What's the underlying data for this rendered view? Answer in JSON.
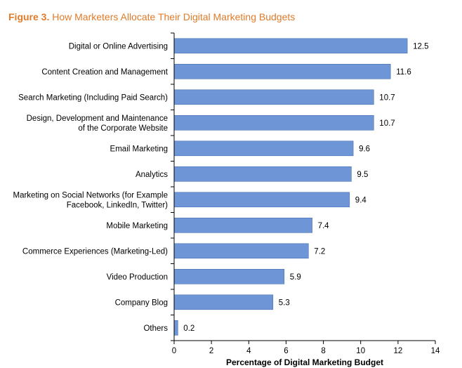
{
  "figure": {
    "number": "Figure 3.",
    "title": "How Marketers Allocate Their Digital Marketing Budgets"
  },
  "colors": {
    "bar": "#6e96d6",
    "bar_border": "#4a72b3",
    "title": "#e07b2a",
    "axis": "#000000"
  },
  "chart_data": {
    "type": "bar",
    "orientation": "horizontal",
    "title": "How Marketers Allocate Their Digital Marketing Budgets",
    "xlabel": "Percentage of Digital Marketing Budget",
    "ylabel": "",
    "xlim": [
      0,
      14
    ],
    "xticks": [
      0,
      2,
      4,
      6,
      8,
      10,
      12,
      14
    ],
    "grid": false,
    "categories": [
      [
        "Digital or Online Advertising"
      ],
      [
        "Content Creation and Management"
      ],
      [
        "Search Marketing (Including Paid Search)"
      ],
      [
        "Design, Development and Maintenance",
        "of the Corporate Website"
      ],
      [
        "Email Marketing"
      ],
      [
        "Analytics"
      ],
      [
        "Marketing on Social Networks (for Example",
        "Facebook, LinkedIn, Twitter)"
      ],
      [
        "Mobile Marketing"
      ],
      [
        "Commerce Experiences (Marketing-Led)"
      ],
      [
        "Video Production"
      ],
      [
        "Company Blog"
      ],
      [
        "Others"
      ]
    ],
    "values": [
      12.5,
      11.6,
      10.7,
      10.7,
      9.6,
      9.5,
      9.4,
      7.4,
      7.2,
      5.9,
      5.3,
      0.2
    ]
  }
}
